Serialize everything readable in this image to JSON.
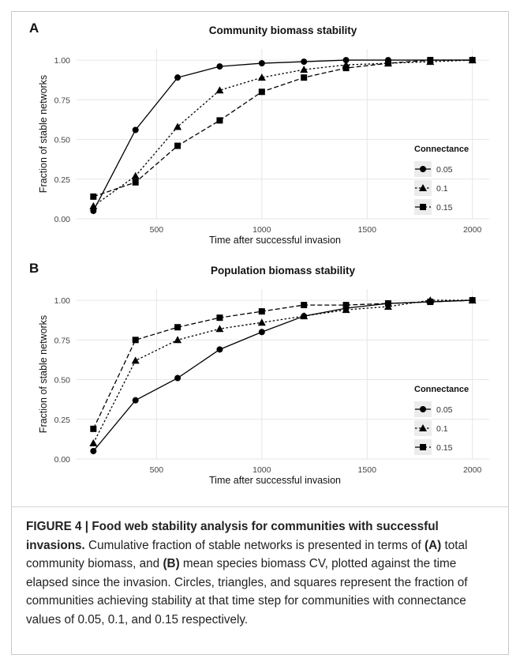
{
  "figure": {
    "caption": {
      "label": "FIGURE 4 | Food web stability analysis for communities with successful invasions.",
      "text_1": " Cumulative fraction of stable networks is presented in terms of ",
      "tag_a": "(A)",
      "text_2": " total community biomass, and ",
      "tag_b": "(B)",
      "text_3": " mean species biomass CV, plotted against the time elapsed since the invasion. Circles, triangles, and squares represent the fraction of communities achieving stability at that time step for communities with connectance values of 0.05, 0.1, and 0.15 respectively."
    }
  },
  "chart_data": [
    {
      "panel_label": "A",
      "type": "line",
      "title": "Community biomass stability",
      "xlabel": "Time after successful invasion",
      "ylabel": "Fraction of stable networks",
      "x": [
        200,
        400,
        600,
        800,
        1000,
        1200,
        1400,
        1600,
        1800,
        2000
      ],
      "xlim": [
        120,
        2080
      ],
      "ylim": [
        0,
        1.07
      ],
      "xticks": [
        500,
        1000,
        1500,
        2000
      ],
      "yticks": [
        "0.00",
        "0.25",
        "0.50",
        "0.75",
        "1.00"
      ],
      "grid": true,
      "legend_title": "Connectance",
      "legend_position": "right",
      "series": [
        {
          "name": "0.05",
          "marker": "circle",
          "dash": "solid",
          "values": [
            0.05,
            0.56,
            0.89,
            0.96,
            0.98,
            0.99,
            1.0,
            1.0,
            1.0,
            1.0
          ]
        },
        {
          "name": "0.1",
          "marker": "triangle",
          "dash": "dotted",
          "values": [
            0.08,
            0.27,
            0.58,
            0.81,
            0.89,
            0.94,
            0.97,
            0.98,
            0.99,
            1.0
          ]
        },
        {
          "name": "0.15",
          "marker": "square",
          "dash": "dashed",
          "values": [
            0.14,
            0.23,
            0.46,
            0.62,
            0.8,
            0.89,
            0.95,
            0.98,
            1.0,
            1.0
          ]
        }
      ]
    },
    {
      "panel_label": "B",
      "type": "line",
      "title": "Population biomass stability",
      "xlabel": "Time after successful invasion",
      "ylabel": "Fraction of stable networks",
      "x": [
        200,
        400,
        600,
        800,
        1000,
        1200,
        1400,
        1600,
        1800,
        2000
      ],
      "xlim": [
        120,
        2080
      ],
      "ylim": [
        0,
        1.07
      ],
      "xticks": [
        500,
        1000,
        1500,
        2000
      ],
      "yticks": [
        "0.00",
        "0.25",
        "0.50",
        "0.75",
        "1.00"
      ],
      "grid": true,
      "legend_title": "Connectance",
      "legend_position": "right",
      "series": [
        {
          "name": "0.05",
          "marker": "circle",
          "dash": "solid",
          "values": [
            0.05,
            0.37,
            0.51,
            0.69,
            0.8,
            0.9,
            0.95,
            0.98,
            0.99,
            1.0
          ]
        },
        {
          "name": "0.1",
          "marker": "triangle",
          "dash": "dotted",
          "values": [
            0.1,
            0.62,
            0.75,
            0.82,
            0.86,
            0.9,
            0.94,
            0.96,
            1.0,
            1.0
          ]
        },
        {
          "name": "0.15",
          "marker": "square",
          "dash": "dashed",
          "values": [
            0.19,
            0.75,
            0.83,
            0.89,
            0.93,
            0.97,
            0.97,
            0.98,
            0.99,
            1.0
          ]
        }
      ]
    }
  ]
}
